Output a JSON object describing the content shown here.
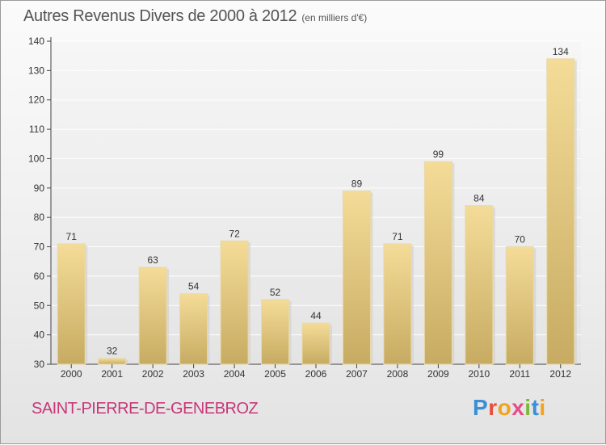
{
  "header": {
    "title": "Autres Revenus Divers de 2000 à 2012",
    "subtitle": "(en milliers d'€)"
  },
  "footer": {
    "commune": "SAINT-PIERRE-DE-GENEBROZ",
    "logo_letters": [
      {
        "ch": "P",
        "color": "#3a8fd6"
      },
      {
        "ch": "r",
        "color": "#e94e3d"
      },
      {
        "ch": "o",
        "color": "#f2a21c"
      },
      {
        "ch": "x",
        "color": "#e84b8a"
      },
      {
        "ch": "i",
        "color": "#7cb93a"
      },
      {
        "ch": "t",
        "color": "#3a8fd6"
      },
      {
        "ch": "i",
        "color": "#f2a21c"
      }
    ]
  },
  "chart_data": {
    "type": "bar",
    "categories": [
      "2000",
      "2001",
      "2002",
      "2003",
      "2004",
      "2005",
      "2006",
      "2007",
      "2008",
      "2009",
      "2010",
      "2011",
      "2012"
    ],
    "values": [
      71,
      32,
      63,
      54,
      72,
      52,
      44,
      89,
      71,
      99,
      84,
      70,
      134
    ],
    "title": "Autres Revenus Divers de 2000 à 2012",
    "xlabel": "",
    "ylabel": "",
    "ylim": [
      30,
      140
    ],
    "yticks": [
      30,
      40,
      50,
      60,
      70,
      80,
      90,
      100,
      110,
      120,
      130,
      140
    ],
    "grid": true,
    "bar_color_top": "#f4dc98",
    "bar_color_bottom": "#c7ab62"
  }
}
